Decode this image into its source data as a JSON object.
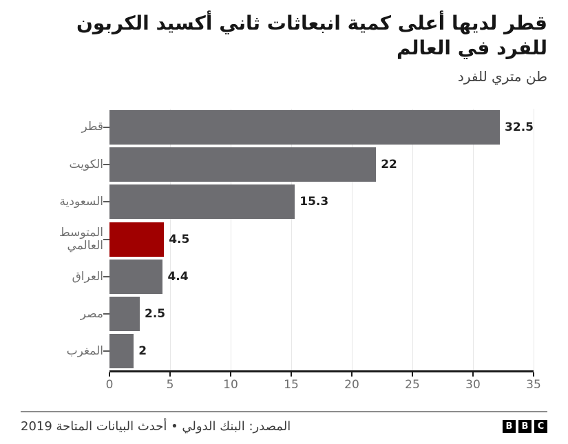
{
  "title": "قطر لديها أعلى كمية انبعاثات ثاني أكسيد الكربون للفرد في العالم",
  "subtitle": "طن متري للفرد",
  "chart_data": {
    "type": "bar",
    "orientation": "horizontal",
    "title": "قطر لديها أعلى كمية انبعاثات ثاني أكسيد الكربون للفرد في العالم",
    "unit_label": "طن متري للفرد",
    "categories": [
      "قطر",
      "الكويت",
      "السعودية",
      "المتوسط العالمي",
      "العراق",
      "مصر",
      "المغرب"
    ],
    "values": [
      32.5,
      22,
      15.3,
      4.5,
      4.4,
      2.5,
      2
    ],
    "value_labels": [
      "32.5",
      "22",
      "15.3",
      "4.5",
      "4.4",
      "2.5",
      "2"
    ],
    "highlight_index": 3,
    "highlight_category": "المتوسط العالمي",
    "xlim": [
      0,
      35
    ],
    "xticks": [
      0,
      5,
      10,
      15,
      20,
      25,
      30,
      35
    ],
    "grid": "vertical-light",
    "legend": "none"
  },
  "colors": {
    "bar": "#6d6d71",
    "highlight": "#a00000",
    "axis": "#1a1a1a",
    "gridline": "#e7e7e7",
    "category_label": "#6e6e6e",
    "value_label": "#1f1f1f",
    "title": "#161616",
    "divider": "#8c8c8c"
  },
  "footer": {
    "source": "المصدر: البنك الدولي • أحدث البيانات المتاحة 2019",
    "logo_letters": [
      "B",
      "B",
      "C"
    ]
  }
}
